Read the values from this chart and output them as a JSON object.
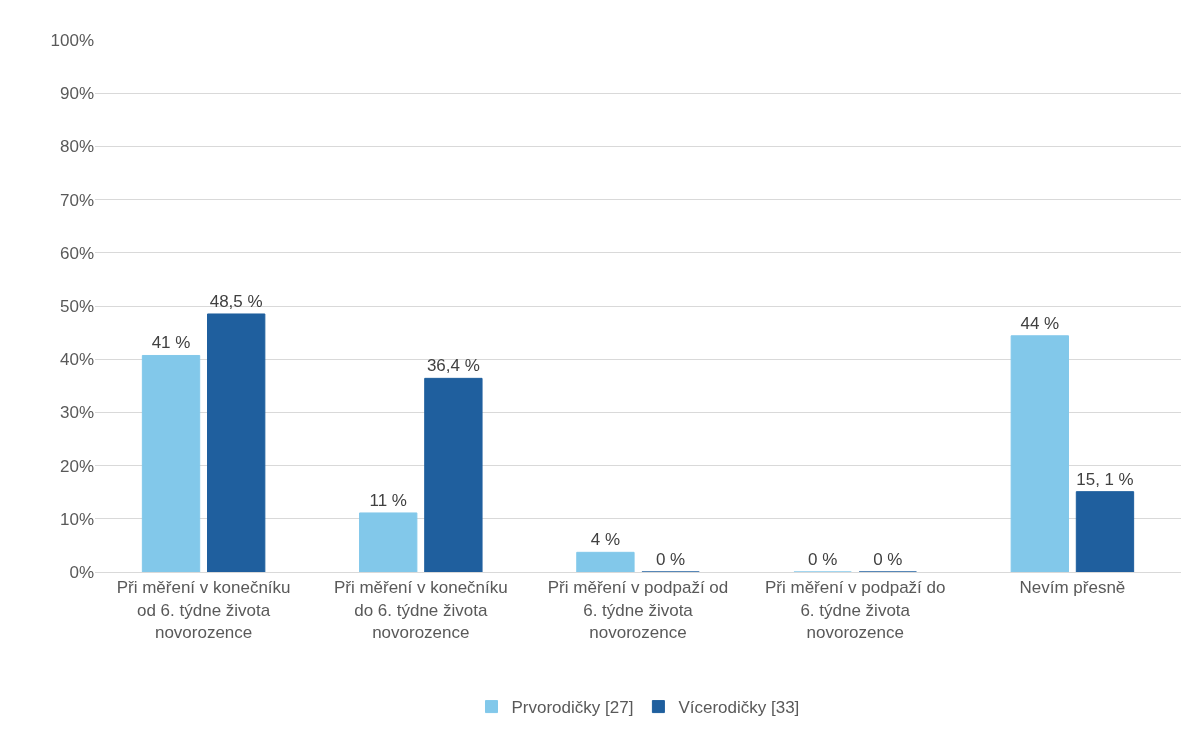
{
  "chart_data": {
    "type": "bar",
    "categories": [
      "Při měření v konečníku od 6. týdne života novorozence",
      "Při měření v konečníku do 6. týdne života novorozence",
      "Při měření v podpaží od 6. týdne života novorozence",
      "Při měření v podpaží do 6. týdne života novorozence",
      "Nevím přesně"
    ],
    "series": [
      {
        "name": "Prvorodičky [27]",
        "color": "#82c8ea",
        "values": [
          40.7,
          11.1,
          3.7,
          0,
          44.4
        ],
        "value_labels": [
          "41 %",
          "11 %",
          "4 %",
          "0 %",
          "44 %"
        ]
      },
      {
        "name": "Vícerodičky [33]",
        "color": "#1f5f9e",
        "values": [
          48.5,
          36.4,
          0,
          0,
          15.1
        ],
        "value_labels": [
          "48,5 %",
          "36,4 %",
          "0 %",
          "0 %",
          "15, 1 %"
        ]
      }
    ],
    "ylim": [
      0,
      100
    ],
    "yticks": [
      {
        "value": 0,
        "label": "0%"
      },
      {
        "value": 10,
        "label": "10%"
      },
      {
        "value": 20,
        "label": "20%"
      },
      {
        "value": 30,
        "label": "30%"
      },
      {
        "value": 40,
        "label": "40%"
      },
      {
        "value": 50,
        "label": "50%"
      },
      {
        "value": 60,
        "label": "60%"
      },
      {
        "value": 70,
        "label": "70%"
      },
      {
        "value": 80,
        "label": "80%"
      },
      {
        "value": 90,
        "label": "90%"
      },
      {
        "value": 100,
        "label": "100%"
      }
    ],
    "grid": "y",
    "legend": "bottom"
  }
}
